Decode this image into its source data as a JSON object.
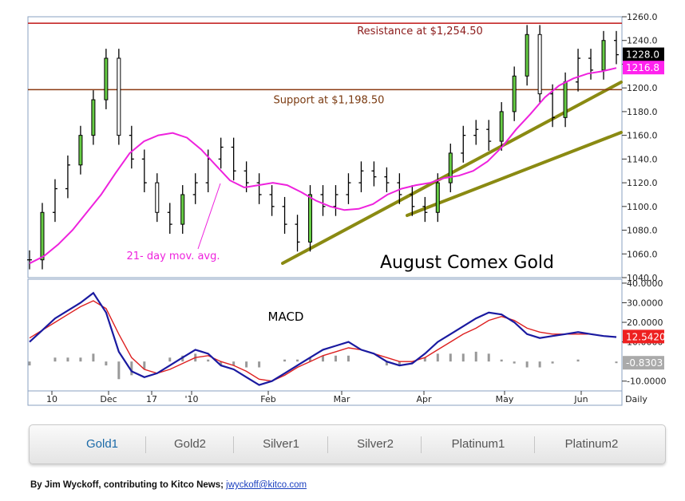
{
  "chart_data": [
    {
      "type": "ohlc",
      "title": "August Comex Gold",
      "ylim": [
        1040,
        1260
      ],
      "y_ticks": [
        "1040.0",
        "1060.0",
        "1080.0",
        "1100.0",
        "1120.0",
        "1140.0",
        "1160.0",
        "1180.0",
        "1200.0",
        "1220.0",
        "1240.0",
        "1260.0"
      ],
      "x_ticks": [
        "10",
        "Dec",
        "17",
        "'10",
        "Feb",
        "Mar",
        "Apr",
        "May",
        "Jun",
        "Daily"
      ],
      "series": [
        {
          "name": "21- day mov. avg.",
          "type": "line",
          "color": "#ee22dd",
          "values": [
            1052,
            1058,
            1068,
            1080,
            1095,
            1110,
            1128,
            1145,
            1155,
            1160,
            1162,
            1158,
            1148,
            1135,
            1122,
            1116,
            1118,
            1120,
            1118,
            1112,
            1105,
            1100,
            1097,
            1098,
            1102,
            1110,
            1115,
            1118,
            1120,
            1124,
            1126,
            1130,
            1138,
            1150,
            1165,
            1178,
            1192,
            1202,
            1208,
            1212,
            1214,
            1216.8
          ]
        },
        {
          "name": "price",
          "type": "ohlc",
          "color": "#000000",
          "values": [
            1055,
            1095,
            1115,
            1135,
            1160,
            1190,
            1225,
            1160,
            1140,
            1120,
            1095,
            1085,
            1110,
            1120,
            1140,
            1150,
            1130,
            1120,
            1110,
            1100,
            1085,
            1070,
            1110,
            1100,
            1110,
            1120,
            1130,
            1125,
            1120,
            1110,
            1100,
            1095,
            1120,
            1145,
            1160,
            1165,
            1155,
            1180,
            1210,
            1245,
            1195,
            1175,
            1205,
            1225,
            1215,
            1240,
            1228
          ]
        }
      ],
      "annotations": [
        {
          "text": "Resistance at $1,254.50",
          "y": 1254.5,
          "color": "#8b1a1a"
        },
        {
          "text": "Support at $1,198.50",
          "y": 1198.5,
          "color": "#7a3a10"
        },
        {
          "text": "21- day mov. avg.",
          "color": "#ee22dd"
        }
      ],
      "trendlines": [
        {
          "from": {
            "x": "Feb",
            "y": 1048
          },
          "to": {
            "x": "Jun",
            "y": 1200
          }
        },
        {
          "from": {
            "x": "Mar",
            "y": 1090
          },
          "to": {
            "x": "Jun",
            "y": 1158
          }
        }
      ],
      "value_labels": [
        {
          "text": "1228.0",
          "color": "#000000",
          "value": 1228.0
        },
        {
          "text": "1216.8",
          "color": "#ff22ee",
          "value": 1216.8
        }
      ]
    },
    {
      "type": "macd",
      "title": "MACD",
      "ylim": [
        -15,
        42
      ],
      "y_ticks": [
        "40.0000",
        "30.0000",
        "20.0000",
        "10.0000",
        "-10.0000"
      ],
      "series": [
        {
          "name": "MACD",
          "color": "#1a1aa0",
          "values": [
            10,
            16,
            22,
            26,
            30,
            35,
            25,
            5,
            -5,
            -8,
            -6,
            -2,
            2,
            6,
            4,
            -2,
            -4,
            -8,
            -12,
            -10,
            -6,
            -2,
            2,
            6,
            8,
            10,
            6,
            4,
            0,
            -2,
            -1,
            4,
            10,
            14,
            18,
            22,
            25,
            24,
            20,
            14,
            12,
            13,
            14,
            15,
            14,
            13,
            12.5
          ]
        },
        {
          "name": "Signal",
          "color": "#dd2020",
          "values": [
            12,
            16,
            20,
            24,
            28,
            31,
            27,
            14,
            2,
            -4,
            -6,
            -4,
            -1,
            2,
            3,
            0,
            -2,
            -5,
            -9,
            -10,
            -7,
            -3,
            0,
            3,
            5,
            7,
            6,
            4,
            2,
            0,
            0,
            2,
            6,
            10,
            14,
            17,
            21,
            23,
            21,
            17,
            15,
            14,
            14,
            14,
            14,
            13,
            12.5
          ]
        },
        {
          "name": "Histogram",
          "color": "#999999",
          "values": [
            -2,
            0,
            2,
            2,
            2,
            4,
            -2,
            -9,
            -7,
            -4,
            0,
            2,
            3,
            4,
            1,
            -2,
            -2,
            -3,
            -3,
            0,
            1,
            1,
            2,
            3,
            3,
            3,
            0,
            0,
            -2,
            -2,
            -1,
            2,
            4,
            4,
            4,
            5,
            4,
            1,
            -1,
            -3,
            -3,
            -1,
            0,
            1,
            0,
            0,
            -0.8303
          ]
        }
      ],
      "value_labels": [
        {
          "text": "12.5420",
          "color": "#ee2020",
          "value": 12.542
        },
        {
          "text": "-0.8303",
          "color": "#aaaaaa",
          "value": -0.8303
        }
      ]
    }
  ],
  "tabs": [
    "Gold1",
    "Gold2",
    "Silver1",
    "Silver2",
    "Platinum1",
    "Platinum2"
  ],
  "byline": {
    "text": "By Jim Wyckoff, contributing to Kitco News; ",
    "email": "jwyckoff@kitco.com"
  }
}
